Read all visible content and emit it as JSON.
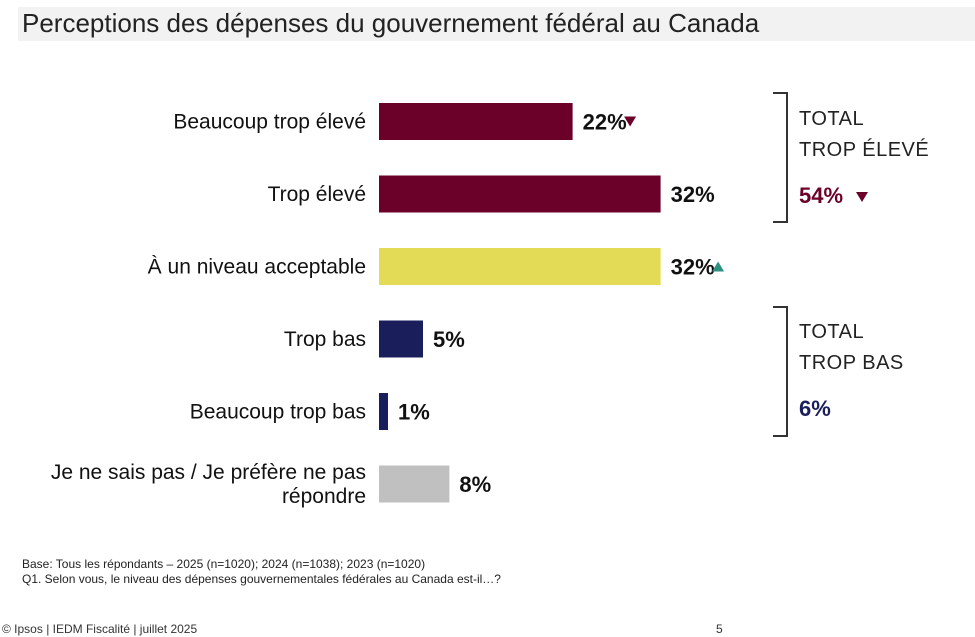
{
  "title": "Perceptions des dépenses du gouvernement fédéral au Canada",
  "chart_data": {
    "type": "bar",
    "orientation": "horizontal",
    "categories": [
      [
        "Beaucoup trop élevé"
      ],
      [
        "Trop élevé"
      ],
      [
        "À un niveau acceptable"
      ],
      [
        "Trop bas"
      ],
      [
        "Beaucoup trop bas"
      ],
      [
        "Je ne sais pas / Je préfère ne pas",
        "répondre"
      ]
    ],
    "values": [
      22,
      32,
      32,
      5,
      1,
      8
    ],
    "value_labels": [
      "22%",
      "32%",
      "32%",
      "5%",
      "1%",
      "8%"
    ],
    "colors": [
      "#6b0029",
      "#6b0029",
      "#e3db55",
      "#1a1f5c",
      "#1a1f5c",
      "#c0c0c0"
    ],
    "change_markers": [
      "down",
      "none",
      "up",
      "none",
      "none",
      "none"
    ],
    "marker_colors": {
      "down": "#6b0029",
      "up": "#2f8f7f"
    },
    "xlim": [
      0,
      100
    ],
    "grid": false
  },
  "groups": [
    {
      "title_lines": [
        "TOTAL",
        "TROP ÉLEVÉ"
      ],
      "value": "54%",
      "color": "#6b0029",
      "marker": "down"
    },
    {
      "title_lines": [
        "TOTAL",
        "TROP BAS"
      ],
      "value": "6%",
      "color": "#1a1f5c",
      "marker": "none"
    }
  ],
  "footnotes": {
    "base": "Base: Tous les répondants – 2025 (n=1020); 2024 (n=1038); 2023 (n=1020)",
    "question": "Q1. Selon vous, le niveau des dépenses gouvernementales fédérales au Canada est-il…?"
  },
  "footer": {
    "source": "© Ipsos | IEDM Fiscalité | juillet 2025",
    "page_number": "5"
  }
}
